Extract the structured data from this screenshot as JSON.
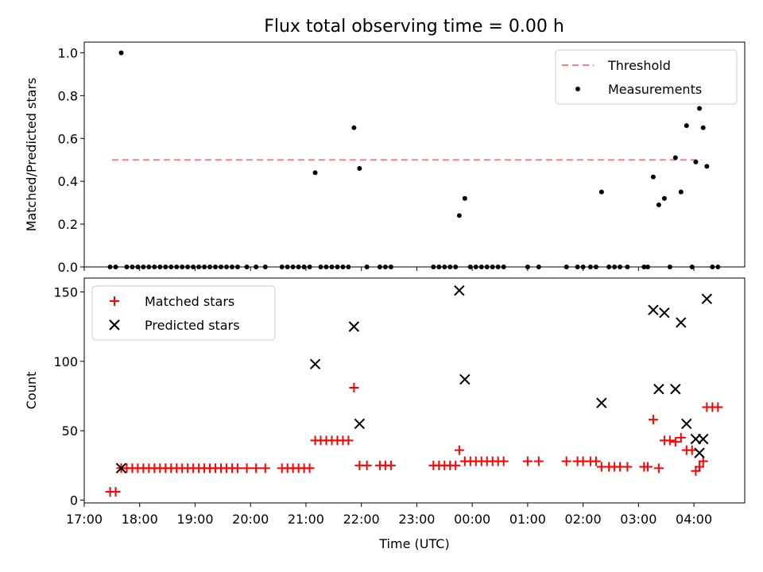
{
  "figure": {
    "title": "Flux total observing time = 0.00 h"
  },
  "chart_data": [
    {
      "type": "scatter",
      "title": "Flux total observing time = 0.00 h",
      "ylabel": "Matched/Predicted stars",
      "xlim": [
        "17:00",
        "04:55"
      ],
      "ylim": [
        0,
        1.05
      ],
      "xticks": [
        "17:00",
        "18:00",
        "19:00",
        "20:00",
        "21:00",
        "22:00",
        "23:00",
        "00:00",
        "01:00",
        "02:00",
        "03:00",
        "04:00"
      ],
      "yticks": [
        "0.0",
        "0.2",
        "0.4",
        "0.6",
        "0.8",
        "1.0"
      ],
      "legend_position": "upper right",
      "threshold": {
        "name": "Threshold",
        "value": 0.5,
        "x": [
          "17:30",
          "04:08"
        ],
        "color": "#ff7f7f"
      },
      "series": [
        {
          "name": "Measurements",
          "color": "#000000",
          "points": [
            [
              "17:28",
              0
            ],
            [
              "17:34",
              0
            ],
            [
              "17:40",
              1.0
            ],
            [
              "17:46",
              0
            ],
            [
              "17:52",
              0
            ],
            [
              "17:58",
              0
            ],
            [
              "18:04",
              0
            ],
            [
              "18:10",
              0
            ],
            [
              "18:16",
              0
            ],
            [
              "18:22",
              0
            ],
            [
              "18:28",
              0
            ],
            [
              "18:34",
              0
            ],
            [
              "18:40",
              0
            ],
            [
              "18:46",
              0
            ],
            [
              "18:52",
              0
            ],
            [
              "18:58",
              0
            ],
            [
              "19:04",
              0
            ],
            [
              "19:10",
              0
            ],
            [
              "19:16",
              0
            ],
            [
              "19:22",
              0
            ],
            [
              "19:28",
              0
            ],
            [
              "19:34",
              0
            ],
            [
              "19:40",
              0
            ],
            [
              "19:46",
              0
            ],
            [
              "19:56",
              0
            ],
            [
              "20:06",
              0
            ],
            [
              "20:16",
              0
            ],
            [
              "20:34",
              0
            ],
            [
              "20:40",
              0
            ],
            [
              "20:46",
              0
            ],
            [
              "20:52",
              0
            ],
            [
              "20:58",
              0
            ],
            [
              "21:04",
              0
            ],
            [
              "21:10",
              0.44
            ],
            [
              "21:16",
              0
            ],
            [
              "21:22",
              0
            ],
            [
              "21:28",
              0
            ],
            [
              "21:34",
              0
            ],
            [
              "21:40",
              0
            ],
            [
              "21:46",
              0
            ],
            [
              "21:52",
              0.65
            ],
            [
              "21:58",
              0.46
            ],
            [
              "22:06",
              0
            ],
            [
              "22:20",
              0
            ],
            [
              "22:26",
              0
            ],
            [
              "22:32",
              0
            ],
            [
              "23:18",
              0
            ],
            [
              "23:24",
              0
            ],
            [
              "23:30",
              0
            ],
            [
              "23:36",
              0
            ],
            [
              "23:42",
              0
            ],
            [
              "23:46",
              0.24
            ],
            [
              "23:52",
              0.32
            ],
            [
              "23:58",
              0
            ],
            [
              "00:04",
              0
            ],
            [
              "00:10",
              0
            ],
            [
              "00:16",
              0
            ],
            [
              "00:22",
              0
            ],
            [
              "00:28",
              0
            ],
            [
              "00:34",
              0
            ],
            [
              "01:00",
              0
            ],
            [
              "01:12",
              0
            ],
            [
              "01:42",
              0
            ],
            [
              "01:54",
              0
            ],
            [
              "02:00",
              0
            ],
            [
              "02:08",
              0
            ],
            [
              "02:14",
              0
            ],
            [
              "02:20",
              0.35
            ],
            [
              "02:28",
              0
            ],
            [
              "02:34",
              0
            ],
            [
              "02:40",
              0
            ],
            [
              "02:48",
              0
            ],
            [
              "03:06",
              0
            ],
            [
              "03:10",
              0
            ],
            [
              "03:16",
              0.42
            ],
            [
              "03:22",
              0.29
            ],
            [
              "03:28",
              0.32
            ],
            [
              "03:34",
              0
            ],
            [
              "03:40",
              0.51
            ],
            [
              "03:46",
              0.35
            ],
            [
              "03:52",
              0.66
            ],
            [
              "03:58",
              0
            ],
            [
              "04:02",
              0.49
            ],
            [
              "04:06",
              0.74
            ],
            [
              "04:10",
              0.65
            ],
            [
              "04:14",
              0.47
            ],
            [
              "04:20",
              0
            ],
            [
              "04:26",
              0
            ]
          ]
        }
      ]
    },
    {
      "type": "scatter",
      "xlabel": "Time (UTC)",
      "ylabel": "Count",
      "xlim": [
        "17:00",
        "04:55"
      ],
      "ylim": [
        -2,
        160
      ],
      "xticks": [
        "17:00",
        "18:00",
        "19:00",
        "20:00",
        "21:00",
        "22:00",
        "23:00",
        "00:00",
        "01:00",
        "02:00",
        "03:00",
        "04:00"
      ],
      "yticks": [
        "0",
        "50",
        "100",
        "150"
      ],
      "legend_position": "upper left",
      "series": [
        {
          "name": "Matched stars",
          "marker": "+",
          "color": "#ff0000",
          "points": [
            [
              "17:28",
              6
            ],
            [
              "17:34",
              6
            ],
            [
              "17:40",
              23
            ],
            [
              "17:46",
              23
            ],
            [
              "17:52",
              23
            ],
            [
              "17:58",
              23
            ],
            [
              "18:04",
              23
            ],
            [
              "18:10",
              23
            ],
            [
              "18:16",
              23
            ],
            [
              "18:22",
              23
            ],
            [
              "18:28",
              23
            ],
            [
              "18:34",
              23
            ],
            [
              "18:40",
              23
            ],
            [
              "18:46",
              23
            ],
            [
              "18:52",
              23
            ],
            [
              "18:58",
              23
            ],
            [
              "19:04",
              23
            ],
            [
              "19:10",
              23
            ],
            [
              "19:16",
              23
            ],
            [
              "19:22",
              23
            ],
            [
              "19:28",
              23
            ],
            [
              "19:34",
              23
            ],
            [
              "19:40",
              23
            ],
            [
              "19:46",
              23
            ],
            [
              "19:56",
              23
            ],
            [
              "20:06",
              23
            ],
            [
              "20:16",
              23
            ],
            [
              "20:34",
              23
            ],
            [
              "20:40",
              23
            ],
            [
              "20:46",
              23
            ],
            [
              "20:52",
              23
            ],
            [
              "20:58",
              23
            ],
            [
              "21:04",
              23
            ],
            [
              "21:10",
              43
            ],
            [
              "21:16",
              43
            ],
            [
              "21:22",
              43
            ],
            [
              "21:28",
              43
            ],
            [
              "21:34",
              43
            ],
            [
              "21:40",
              43
            ],
            [
              "21:46",
              43
            ],
            [
              "21:52",
              81
            ],
            [
              "21:58",
              25
            ],
            [
              "22:06",
              25
            ],
            [
              "22:20",
              25
            ],
            [
              "22:26",
              25
            ],
            [
              "22:32",
              25
            ],
            [
              "23:18",
              25
            ],
            [
              "23:24",
              25
            ],
            [
              "23:30",
              25
            ],
            [
              "23:36",
              25
            ],
            [
              "23:42",
              25
            ],
            [
              "23:46",
              36
            ],
            [
              "23:52",
              28
            ],
            [
              "23:58",
              28
            ],
            [
              "00:04",
              28
            ],
            [
              "00:10",
              28
            ],
            [
              "00:16",
              28
            ],
            [
              "00:22",
              28
            ],
            [
              "00:28",
              28
            ],
            [
              "00:34",
              28
            ],
            [
              "01:00",
              28
            ],
            [
              "01:12",
              28
            ],
            [
              "01:42",
              28
            ],
            [
              "01:54",
              28
            ],
            [
              "02:00",
              28
            ],
            [
              "02:08",
              28
            ],
            [
              "02:14",
              28
            ],
            [
              "02:20",
              24
            ],
            [
              "02:28",
              24
            ],
            [
              "02:34",
              24
            ],
            [
              "02:40",
              24
            ],
            [
              "02:48",
              24
            ],
            [
              "03:06",
              24
            ],
            [
              "03:10",
              24
            ],
            [
              "03:16",
              58
            ],
            [
              "03:22",
              23
            ],
            [
              "03:28",
              43
            ],
            [
              "03:34",
              43
            ],
            [
              "03:40",
              42
            ],
            [
              "03:46",
              45
            ],
            [
              "03:52",
              36
            ],
            [
              "03:58",
              36
            ],
            [
              "04:02",
              21
            ],
            [
              "04:06",
              24
            ],
            [
              "04:10",
              28
            ],
            [
              "04:14",
              67
            ],
            [
              "04:20",
              67
            ],
            [
              "04:26",
              67
            ]
          ]
        },
        {
          "name": "Predicted stars",
          "marker": "x",
          "color": "#000000",
          "points": [
            [
              "17:40",
              23
            ],
            [
              "21:10",
              98
            ],
            [
              "21:52",
              125
            ],
            [
              "21:58",
              55
            ],
            [
              "23:46",
              151
            ],
            [
              "23:52",
              87
            ],
            [
              "02:20",
              70
            ],
            [
              "03:16",
              137
            ],
            [
              "03:22",
              80
            ],
            [
              "03:28",
              135
            ],
            [
              "03:40",
              80
            ],
            [
              "03:46",
              128
            ],
            [
              "03:52",
              55
            ],
            [
              "04:02",
              44
            ],
            [
              "04:06",
              34
            ],
            [
              "04:10",
              44
            ],
            [
              "04:14",
              145
            ]
          ]
        }
      ]
    }
  ]
}
